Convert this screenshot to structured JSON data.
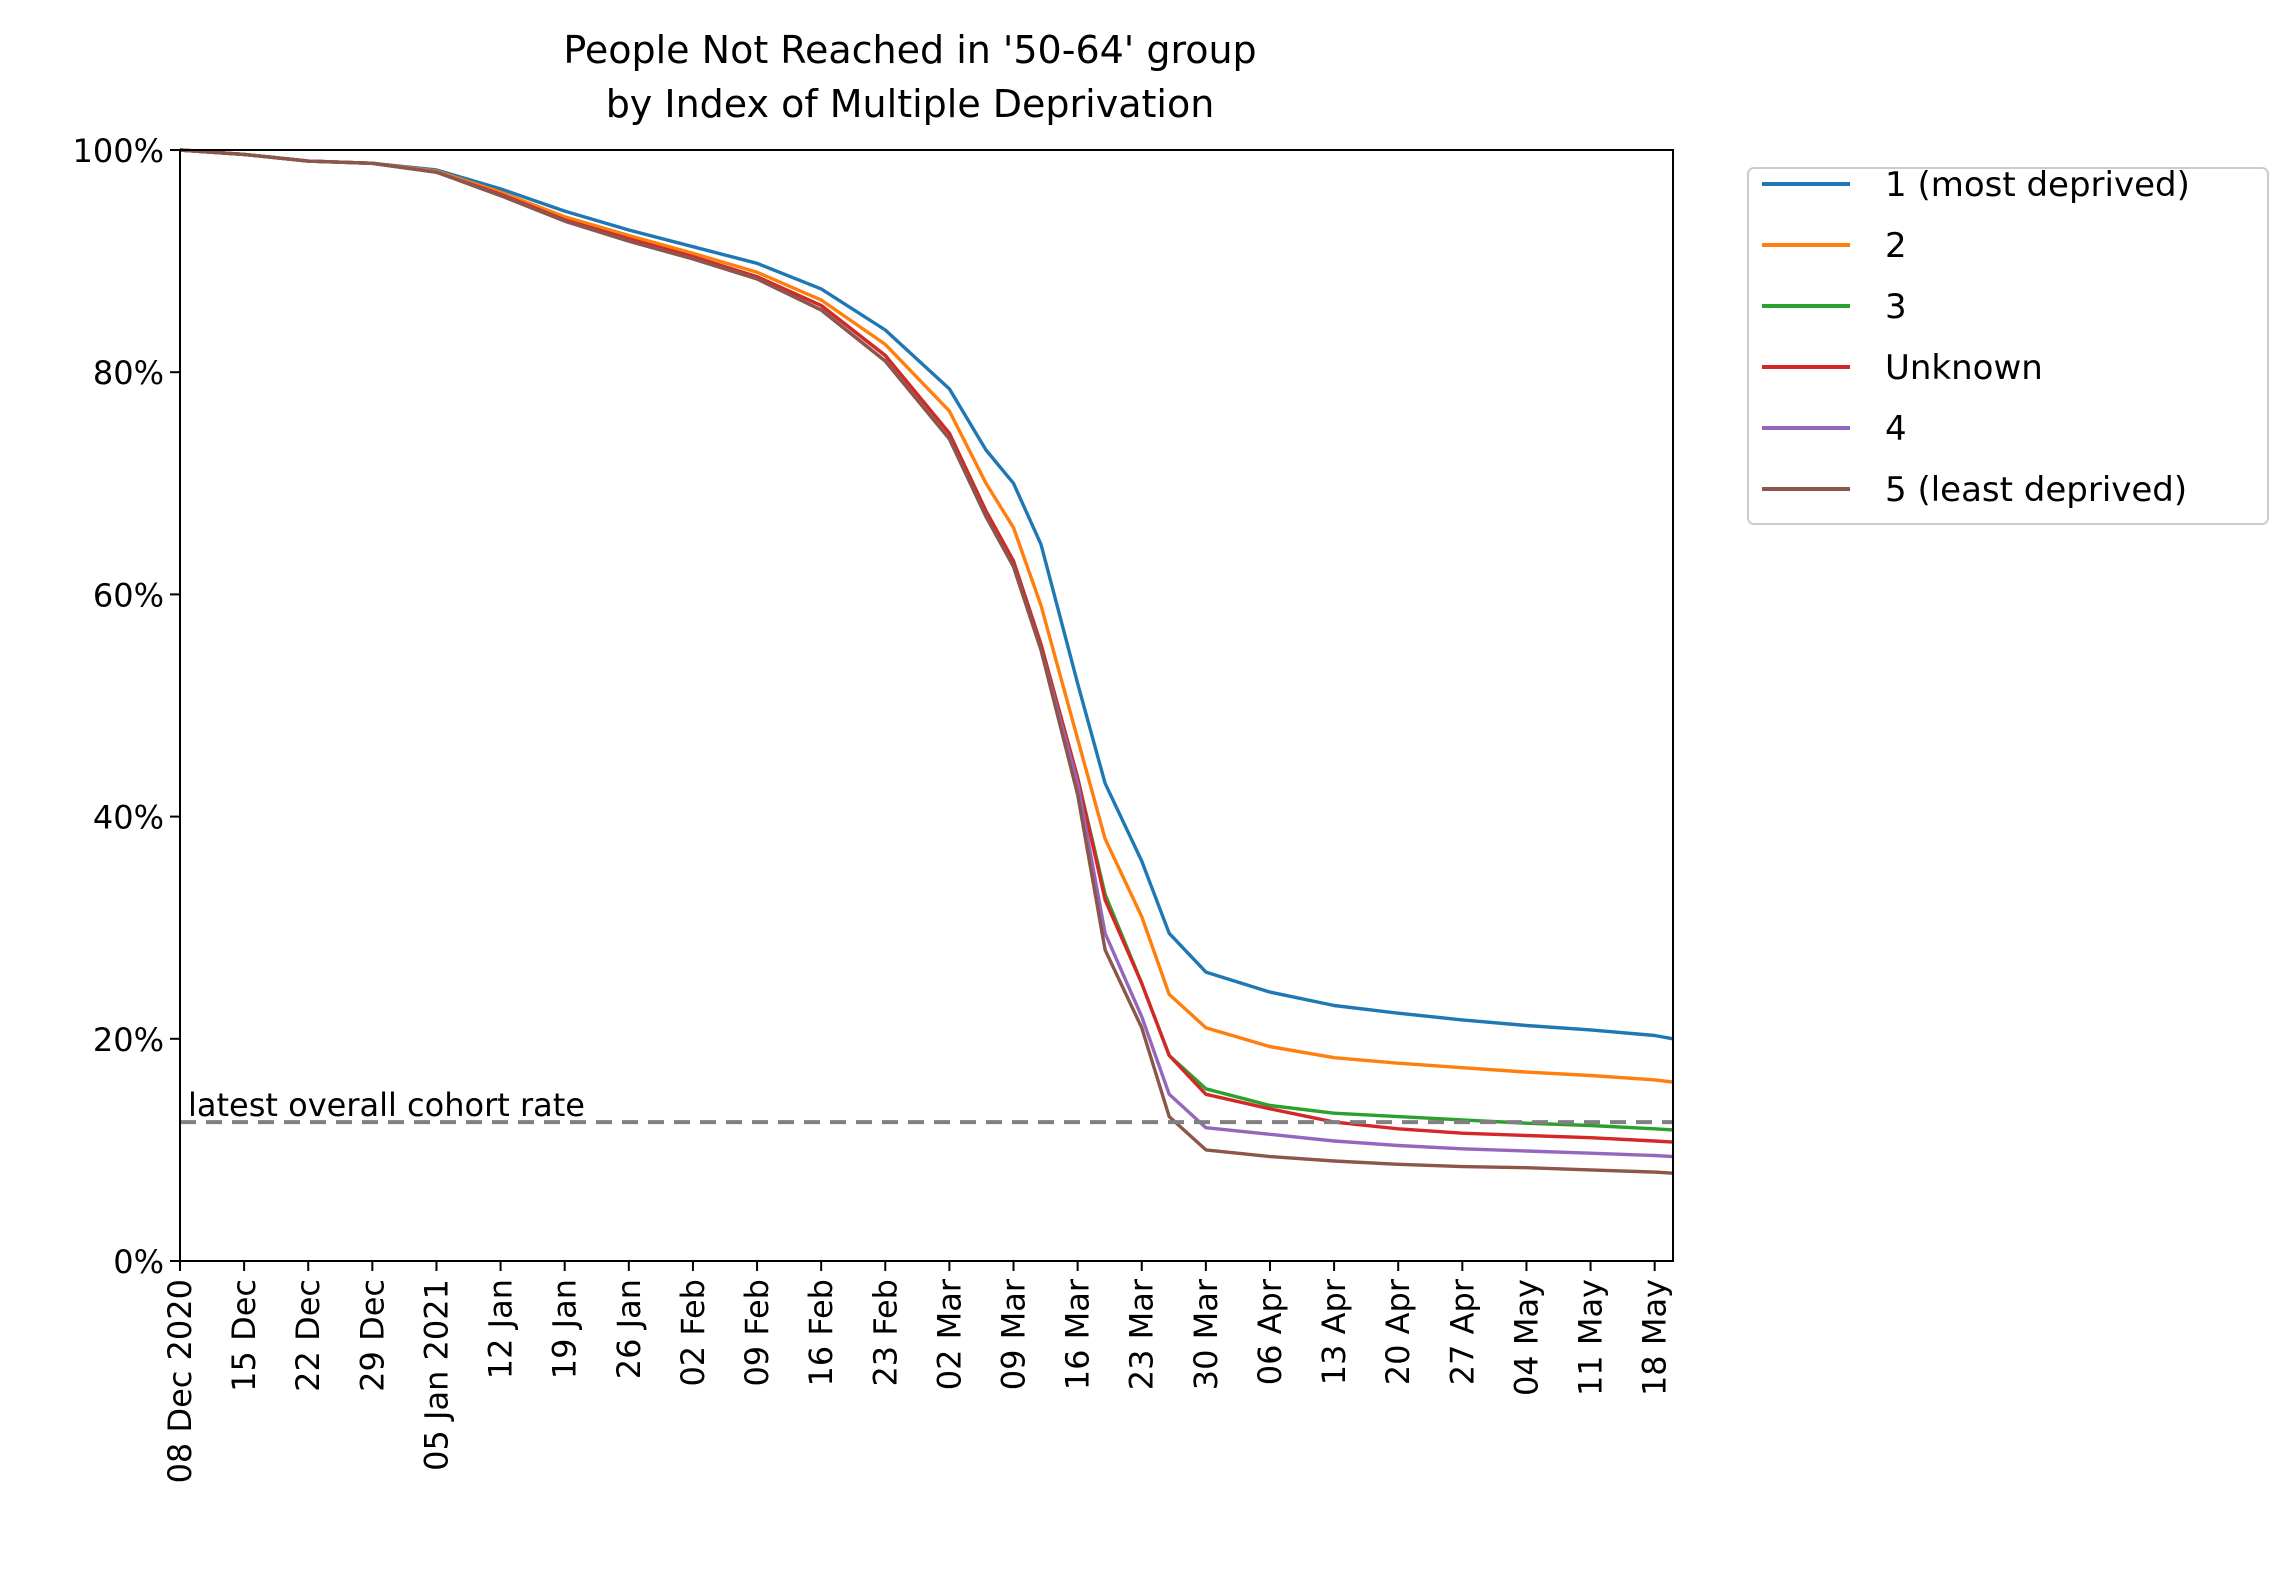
{
  "chart_data": {
    "type": "line",
    "title": "People Not Reached in '50-64' group",
    "subtitle": "by Index of Multiple Deprivation",
    "xlabel": "",
    "ylabel": "",
    "ylim": [
      0,
      100
    ],
    "y_tick_labels": [
      "0%",
      "20%",
      "40%",
      "60%",
      "80%",
      "100%"
    ],
    "xlim": [
      "2020-12-08",
      "2021-05-20"
    ],
    "x_tick_labels": [
      "08 Dec 2020",
      "15 Dec",
      "22 Dec",
      "29 Dec",
      "05 Jan 2021",
      "12 Jan",
      "19 Jan",
      "26 Jan",
      "02 Feb",
      "09 Feb",
      "16 Feb",
      "23 Feb",
      "02 Mar",
      "09 Mar",
      "16 Mar",
      "23 Mar",
      "30 Mar",
      "06 Apr",
      "13 Apr",
      "20 Apr",
      "27 Apr",
      "04 May",
      "11 May",
      "18 May"
    ],
    "x_tick_dates": [
      "2020-12-08",
      "2020-12-15",
      "2020-12-22",
      "2020-12-29",
      "2021-01-05",
      "2021-01-12",
      "2021-01-19",
      "2021-01-26",
      "2021-02-02",
      "2021-02-09",
      "2021-02-16",
      "2021-02-23",
      "2021-03-02",
      "2021-03-09",
      "2021-03-16",
      "2021-03-23",
      "2021-03-30",
      "2021-04-06",
      "2021-04-13",
      "2021-04-20",
      "2021-04-27",
      "2021-05-04",
      "2021-05-11",
      "2021-05-18"
    ],
    "x": [
      "2020-12-08",
      "2020-12-15",
      "2020-12-22",
      "2020-12-29",
      "2021-01-05",
      "2021-01-12",
      "2021-01-19",
      "2021-01-26",
      "2021-02-02",
      "2021-02-09",
      "2021-02-16",
      "2021-02-23",
      "2021-03-02",
      "2021-03-06",
      "2021-03-09",
      "2021-03-12",
      "2021-03-16",
      "2021-03-19",
      "2021-03-23",
      "2021-03-26",
      "2021-03-30",
      "2021-04-06",
      "2021-04-13",
      "2021-04-20",
      "2021-04-27",
      "2021-05-04",
      "2021-05-11",
      "2021-05-18",
      "2021-05-20"
    ],
    "series": [
      {
        "name": "1 (most deprived)",
        "color": "#1f77b4",
        "values": [
          100,
          99.6,
          99.0,
          98.8,
          98.2,
          96.5,
          94.5,
          92.8,
          91.3,
          89.8,
          87.5,
          83.8,
          78.5,
          73.0,
          70.0,
          64.5,
          52.0,
          43.0,
          36.0,
          29.5,
          26.0,
          24.2,
          23.0,
          22.3,
          21.7,
          21.2,
          20.8,
          20.3,
          20.0
        ]
      },
      {
        "name": "2",
        "color": "#ff7f0e",
        "values": [
          100,
          99.6,
          99.0,
          98.8,
          98.1,
          96.2,
          94.0,
          92.3,
          90.7,
          89.0,
          86.5,
          82.5,
          76.5,
          70.0,
          66.0,
          59.0,
          47.0,
          38.0,
          31.0,
          24.0,
          21.0,
          19.3,
          18.3,
          17.8,
          17.4,
          17.0,
          16.7,
          16.3,
          16.1
        ]
      },
      {
        "name": "3",
        "color": "#2ca02c",
        "values": [
          100,
          99.6,
          99.0,
          98.8,
          98.0,
          96.0,
          93.7,
          92.0,
          90.4,
          88.6,
          86.0,
          81.5,
          74.5,
          67.5,
          63.0,
          55.5,
          43.5,
          33.0,
          25.0,
          18.5,
          15.5,
          14.0,
          13.3,
          13.0,
          12.7,
          12.4,
          12.2,
          11.9,
          11.8
        ]
      },
      {
        "name": "Unknown",
        "color": "#d62728",
        "values": [
          100,
          99.6,
          99.0,
          98.8,
          98.0,
          96.0,
          93.7,
          92.0,
          90.4,
          88.6,
          86.0,
          81.5,
          74.5,
          67.5,
          63.0,
          55.5,
          43.5,
          32.5,
          25.0,
          18.5,
          15.0,
          13.7,
          12.5,
          11.9,
          11.5,
          11.3,
          11.1,
          10.8,
          10.7
        ]
      },
      {
        "name": "4",
        "color": "#9467bd",
        "values": [
          100,
          99.6,
          99.0,
          98.8,
          98.0,
          95.9,
          93.6,
          91.8,
          90.2,
          88.4,
          85.6,
          81.0,
          74.0,
          67.0,
          62.5,
          55.0,
          43.0,
          29.5,
          22.0,
          15.0,
          12.0,
          11.4,
          10.8,
          10.4,
          10.1,
          9.9,
          9.7,
          9.5,
          9.4
        ]
      },
      {
        "name": "5 (least deprived)",
        "color": "#8c564b",
        "values": [
          100,
          99.6,
          99.0,
          98.8,
          98.0,
          95.9,
          93.6,
          91.8,
          90.2,
          88.4,
          85.6,
          81.0,
          74.0,
          67.0,
          62.5,
          55.0,
          42.0,
          28.0,
          21.0,
          13.0,
          10.0,
          9.4,
          9.0,
          8.7,
          8.5,
          8.4,
          8.2,
          8.0,
          7.9
        ]
      }
    ],
    "reference_line": {
      "label": "latest overall cohort rate",
      "value": 12.5,
      "color": "#808080"
    },
    "legend_position": "outside-right",
    "grid": false
  }
}
